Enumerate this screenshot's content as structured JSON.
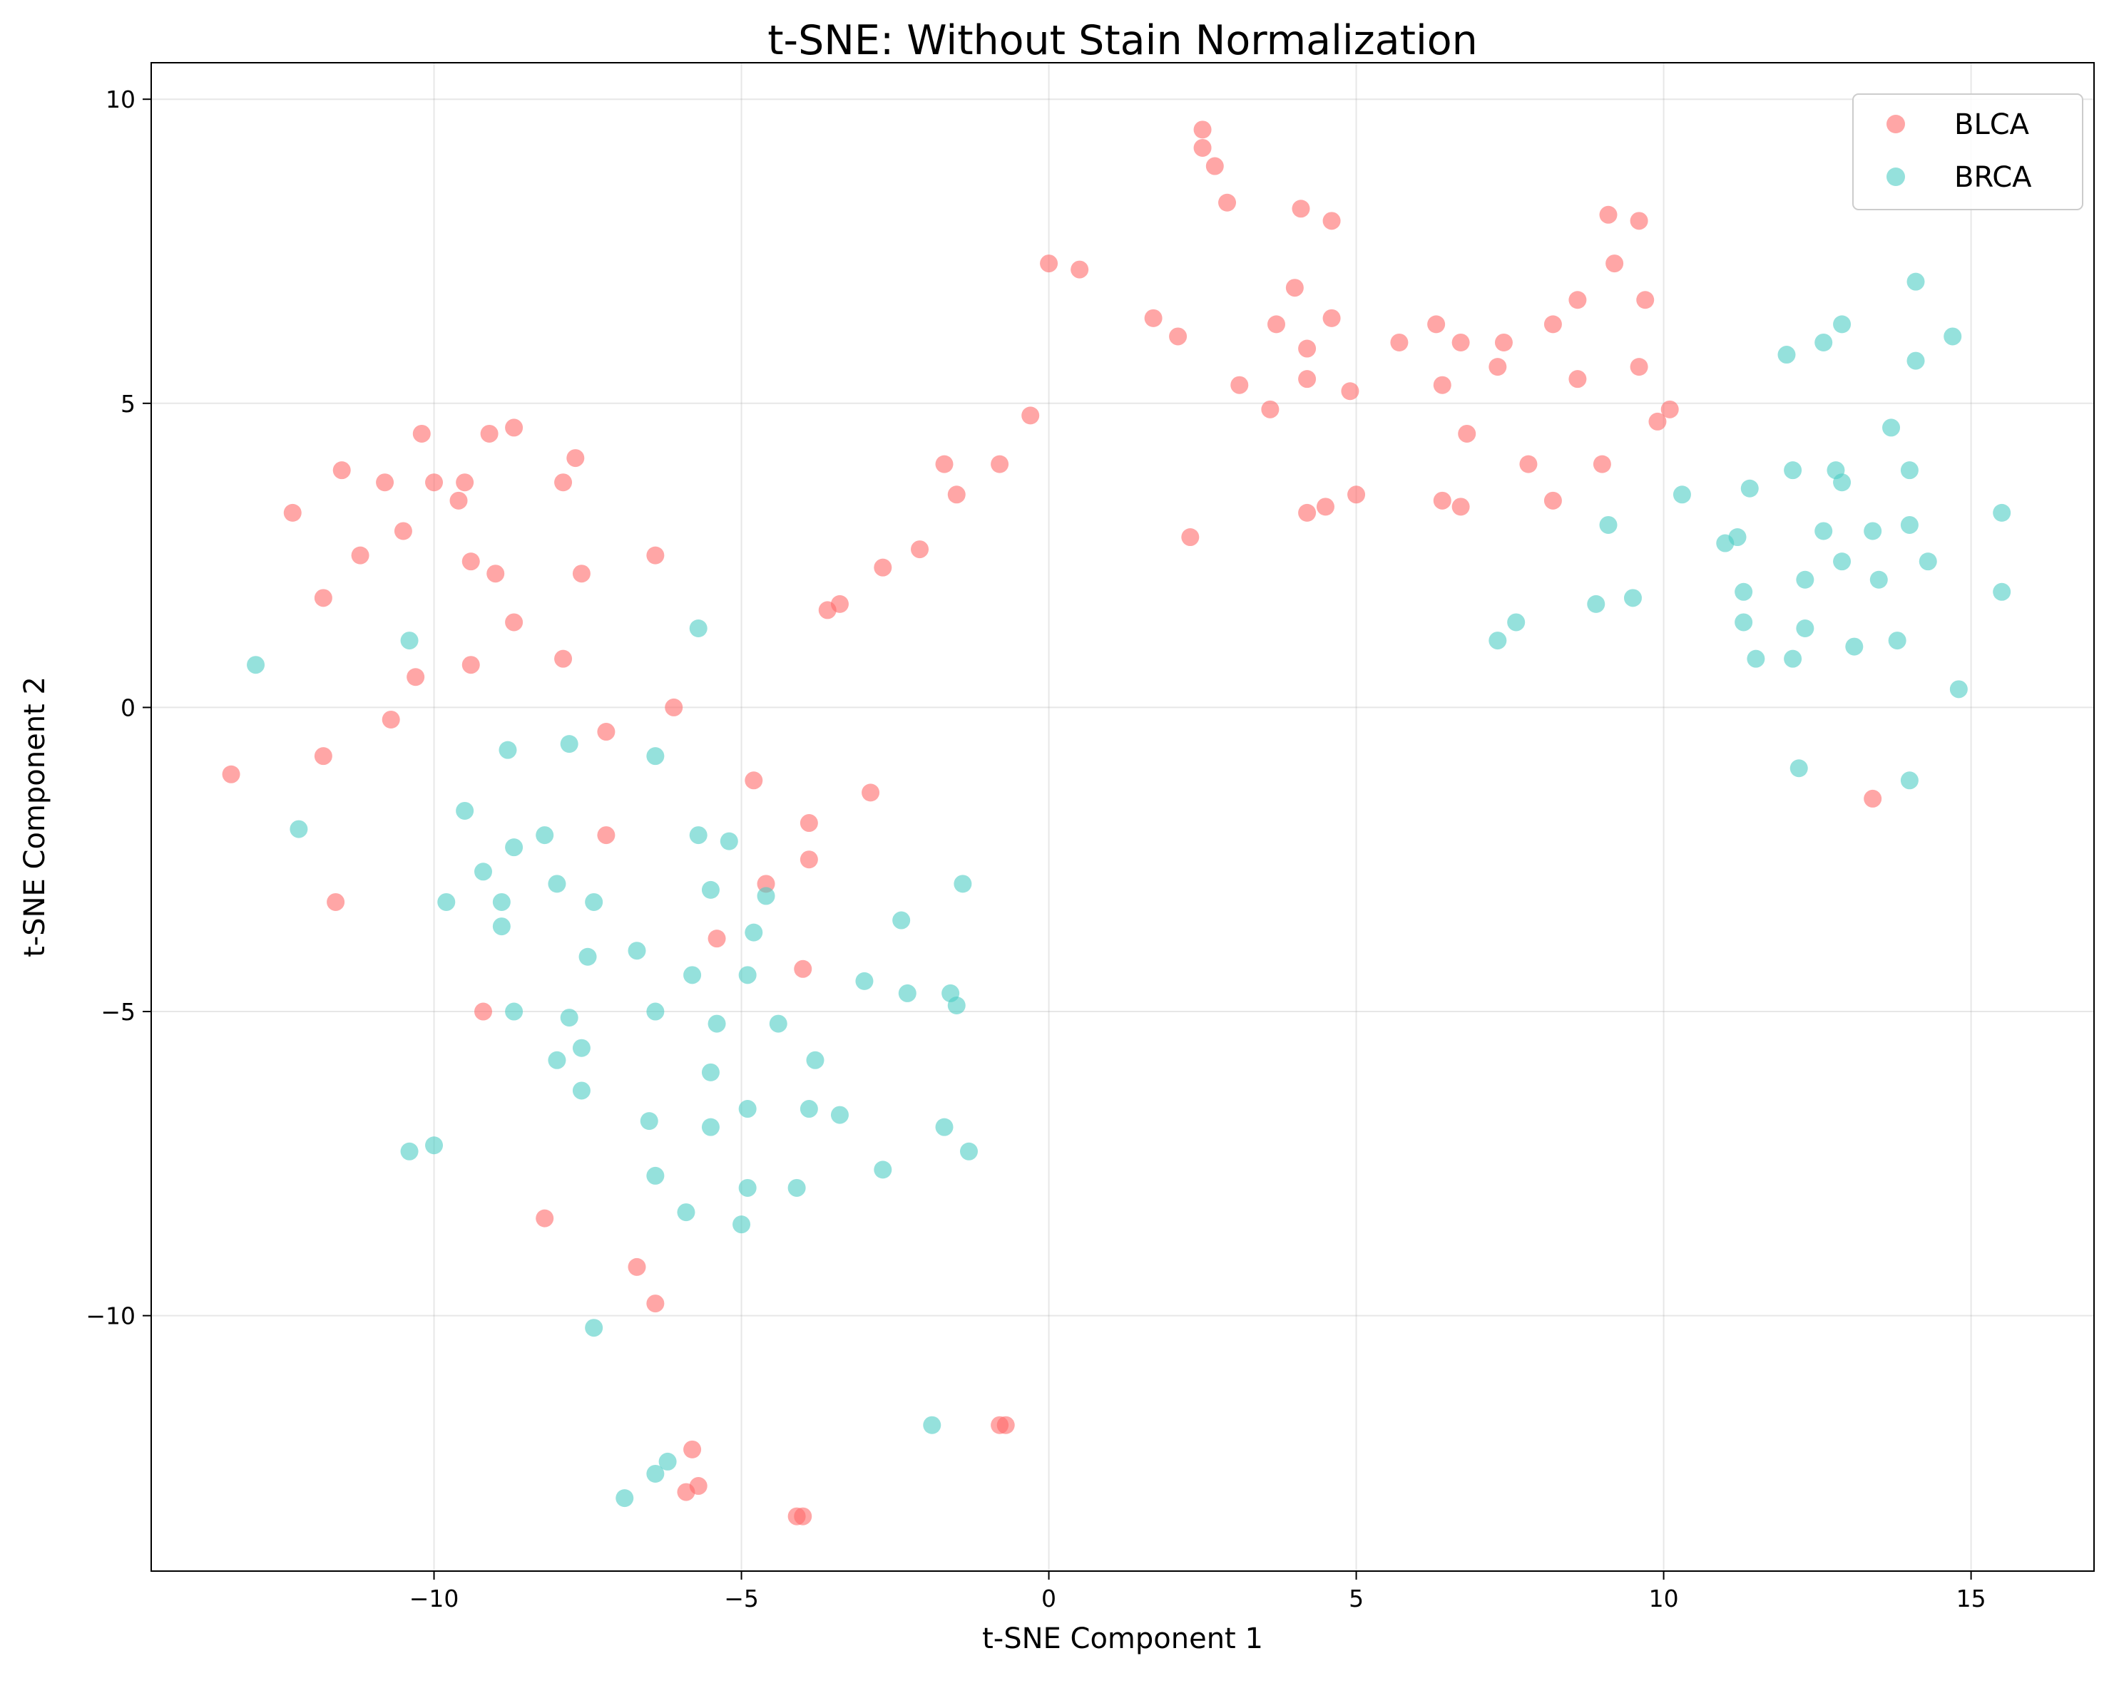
{
  "chart_data": {
    "type": "scatter",
    "title": "t-SNE: Without Stain Normalization",
    "xlabel": "t-SNE Component 1",
    "ylabel": "t-SNE Component 2",
    "xlim": [
      -14.6,
      17.0
    ],
    "ylim": [
      -14.2,
      10.6
    ],
    "xticks": [
      -10,
      -5,
      0,
      5,
      10,
      15
    ],
    "yticks": [
      -10,
      -5,
      0,
      5,
      10
    ],
    "xtick_labels": [
      "−10",
      "−5",
      "0",
      "5",
      "10",
      "15"
    ],
    "ytick_labels": [
      "−10",
      "−5",
      "0",
      "5",
      "10"
    ],
    "grid": true,
    "legend_position": "top-right",
    "series": [
      {
        "name": "BLCA",
        "color": "#ff6b6b",
        "points": [
          [
            -13.3,
            -1.1
          ],
          [
            -12.3,
            3.2
          ],
          [
            -11.8,
            1.8
          ],
          [
            -11.8,
            -0.8
          ],
          [
            -11.5,
            3.9
          ],
          [
            -11.6,
            -3.2
          ],
          [
            -11.2,
            2.5
          ],
          [
            -10.8,
            3.7
          ],
          [
            -10.7,
            -0.2
          ],
          [
            -10.5,
            2.9
          ],
          [
            -10.3,
            0.5
          ],
          [
            -10.2,
            4.5
          ],
          [
            -10.0,
            3.7
          ],
          [
            -9.6,
            3.4
          ],
          [
            -9.5,
            3.7
          ],
          [
            -9.4,
            2.4
          ],
          [
            -9.4,
            0.7
          ],
          [
            -9.1,
            4.5
          ],
          [
            -9.0,
            2.2
          ],
          [
            -9.2,
            -5.0
          ],
          [
            -8.7,
            4.6
          ],
          [
            -8.7,
            1.4
          ],
          [
            -8.2,
            -8.4
          ],
          [
            -7.9,
            3.7
          ],
          [
            -7.9,
            0.8
          ],
          [
            -7.7,
            4.1
          ],
          [
            -7.6,
            2.2
          ],
          [
            -7.2,
            -0.4
          ],
          [
            -7.2,
            -2.1
          ],
          [
            -6.7,
            -9.2
          ],
          [
            -6.4,
            2.5
          ],
          [
            -6.4,
            -9.8
          ],
          [
            -6.1,
            0.0
          ],
          [
            -5.8,
            -12.2
          ],
          [
            -5.7,
            -12.8
          ],
          [
            -5.9,
            -12.9
          ],
          [
            -5.4,
            -3.8
          ],
          [
            -4.8,
            -1.2
          ],
          [
            -4.6,
            -2.9
          ],
          [
            -4.0,
            -4.3
          ],
          [
            -3.9,
            -2.5
          ],
          [
            -3.9,
            -1.9
          ],
          [
            -4.1,
            -13.3
          ],
          [
            -4.0,
            -13.3
          ],
          [
            -3.6,
            1.6
          ],
          [
            -3.4,
            1.7
          ],
          [
            -2.9,
            -1.4
          ],
          [
            -2.7,
            2.3
          ],
          [
            -2.1,
            2.6
          ],
          [
            -1.7,
            4.0
          ],
          [
            -1.5,
            3.5
          ],
          [
            -0.8,
            4.0
          ],
          [
            -0.8,
            -11.8
          ],
          [
            -0.7,
            -11.8
          ],
          [
            -0.3,
            4.8
          ],
          [
            0.0,
            7.3
          ],
          [
            0.5,
            7.2
          ],
          [
            1.7,
            6.4
          ],
          [
            2.1,
            6.1
          ],
          [
            2.3,
            2.8
          ],
          [
            2.5,
            9.5
          ],
          [
            2.5,
            9.2
          ],
          [
            2.7,
            8.9
          ],
          [
            2.9,
            8.3
          ],
          [
            3.1,
            5.3
          ],
          [
            3.6,
            4.9
          ],
          [
            3.7,
            6.3
          ],
          [
            4.0,
            6.9
          ],
          [
            4.1,
            8.2
          ],
          [
            4.2,
            5.9
          ],
          [
            4.2,
            5.4
          ],
          [
            4.2,
            3.2
          ],
          [
            4.5,
            3.3
          ],
          [
            4.6,
            8.0
          ],
          [
            4.6,
            6.4
          ],
          [
            4.9,
            5.2
          ],
          [
            5.0,
            3.5
          ],
          [
            5.7,
            6.0
          ],
          [
            6.3,
            6.3
          ],
          [
            6.4,
            5.3
          ],
          [
            6.4,
            3.4
          ],
          [
            6.7,
            6.0
          ],
          [
            6.7,
            3.3
          ],
          [
            6.8,
            4.5
          ],
          [
            7.3,
            5.6
          ],
          [
            7.4,
            6.0
          ],
          [
            7.8,
            4.0
          ],
          [
            8.2,
            6.3
          ],
          [
            8.2,
            3.4
          ],
          [
            8.6,
            6.7
          ],
          [
            8.6,
            5.4
          ],
          [
            9.0,
            4.0
          ],
          [
            9.1,
            8.1
          ],
          [
            9.2,
            7.3
          ],
          [
            9.6,
            5.6
          ],
          [
            9.6,
            8.0
          ],
          [
            9.7,
            6.7
          ],
          [
            9.9,
            4.7
          ],
          [
            10.1,
            4.9
          ],
          [
            13.4,
            -1.5
          ]
        ]
      },
      {
        "name": "BRCA",
        "color": "#4ecdc4",
        "points": [
          [
            -12.9,
            0.7
          ],
          [
            -12.2,
            -2.0
          ],
          [
            -10.4,
            1.1
          ],
          [
            -10.4,
            -7.3
          ],
          [
            -10.0,
            -7.2
          ],
          [
            -9.8,
            -3.2
          ],
          [
            -9.5,
            -1.7
          ],
          [
            -9.2,
            -2.7
          ],
          [
            -8.9,
            -3.2
          ],
          [
            -8.9,
            -3.6
          ],
          [
            -8.8,
            -0.7
          ],
          [
            -8.7,
            -5.0
          ],
          [
            -8.7,
            -2.3
          ],
          [
            -8.2,
            -2.1
          ],
          [
            -8.0,
            -2.9
          ],
          [
            -8.0,
            -5.8
          ],
          [
            -7.8,
            -0.6
          ],
          [
            -7.8,
            -5.1
          ],
          [
            -7.6,
            -5.6
          ],
          [
            -7.6,
            -6.3
          ],
          [
            -7.5,
            -4.1
          ],
          [
            -7.4,
            -3.2
          ],
          [
            -7.4,
            -10.2
          ],
          [
            -6.7,
            -4.0
          ],
          [
            -6.5,
            -6.8
          ],
          [
            -6.4,
            -5.0
          ],
          [
            -6.4,
            -0.8
          ],
          [
            -6.4,
            -7.7
          ],
          [
            -6.4,
            -12.6
          ],
          [
            -6.2,
            -12.4
          ],
          [
            -6.9,
            -13.0
          ],
          [
            -5.9,
            -8.3
          ],
          [
            -5.8,
            -4.4
          ],
          [
            -5.7,
            1.3
          ],
          [
            -5.7,
            -2.1
          ],
          [
            -5.5,
            -3.0
          ],
          [
            -5.5,
            -6.0
          ],
          [
            -5.5,
            -6.9
          ],
          [
            -5.4,
            -5.2
          ],
          [
            -5.2,
            -2.2
          ],
          [
            -5.0,
            -8.5
          ],
          [
            -4.9,
            -7.9
          ],
          [
            -4.9,
            -6.6
          ],
          [
            -4.9,
            -4.4
          ],
          [
            -4.8,
            -3.7
          ],
          [
            -4.6,
            -3.1
          ],
          [
            -4.4,
            -5.2
          ],
          [
            -4.1,
            -7.9
          ],
          [
            -3.9,
            -6.6
          ],
          [
            -3.8,
            -5.8
          ],
          [
            -3.4,
            -6.7
          ],
          [
            -3.0,
            -4.5
          ],
          [
            -2.7,
            -7.6
          ],
          [
            -2.4,
            -3.5
          ],
          [
            -2.3,
            -4.7
          ],
          [
            -1.9,
            -11.8
          ],
          [
            -1.7,
            -6.9
          ],
          [
            -1.6,
            -4.7
          ],
          [
            -1.5,
            -4.9
          ],
          [
            -1.4,
            -2.9
          ],
          [
            -1.3,
            -7.3
          ],
          [
            7.3,
            1.1
          ],
          [
            7.6,
            1.4
          ],
          [
            8.9,
            1.7
          ],
          [
            9.1,
            3.0
          ],
          [
            9.5,
            1.8
          ],
          [
            10.3,
            3.5
          ],
          [
            11.0,
            2.7
          ],
          [
            11.2,
            2.8
          ],
          [
            11.3,
            1.9
          ],
          [
            11.3,
            1.4
          ],
          [
            11.4,
            3.6
          ],
          [
            11.5,
            0.8
          ],
          [
            12.0,
            5.8
          ],
          [
            12.1,
            3.9
          ],
          [
            12.1,
            0.8
          ],
          [
            12.2,
            -1.0
          ],
          [
            12.3,
            2.1
          ],
          [
            12.3,
            1.3
          ],
          [
            12.6,
            6.0
          ],
          [
            12.6,
            2.9
          ],
          [
            12.8,
            3.9
          ],
          [
            12.9,
            6.3
          ],
          [
            12.9,
            3.7
          ],
          [
            12.9,
            2.4
          ],
          [
            13.1,
            1.0
          ],
          [
            13.4,
            2.9
          ],
          [
            13.5,
            2.1
          ],
          [
            13.7,
            4.6
          ],
          [
            13.8,
            1.1
          ],
          [
            14.0,
            3.9
          ],
          [
            14.0,
            3.0
          ],
          [
            14.0,
            -1.2
          ],
          [
            14.1,
            7.0
          ],
          [
            14.1,
            5.7
          ],
          [
            14.3,
            2.4
          ],
          [
            14.7,
            6.1
          ],
          [
            14.8,
            0.3
          ],
          [
            15.5,
            3.2
          ],
          [
            15.5,
            1.9
          ]
        ]
      }
    ]
  }
}
